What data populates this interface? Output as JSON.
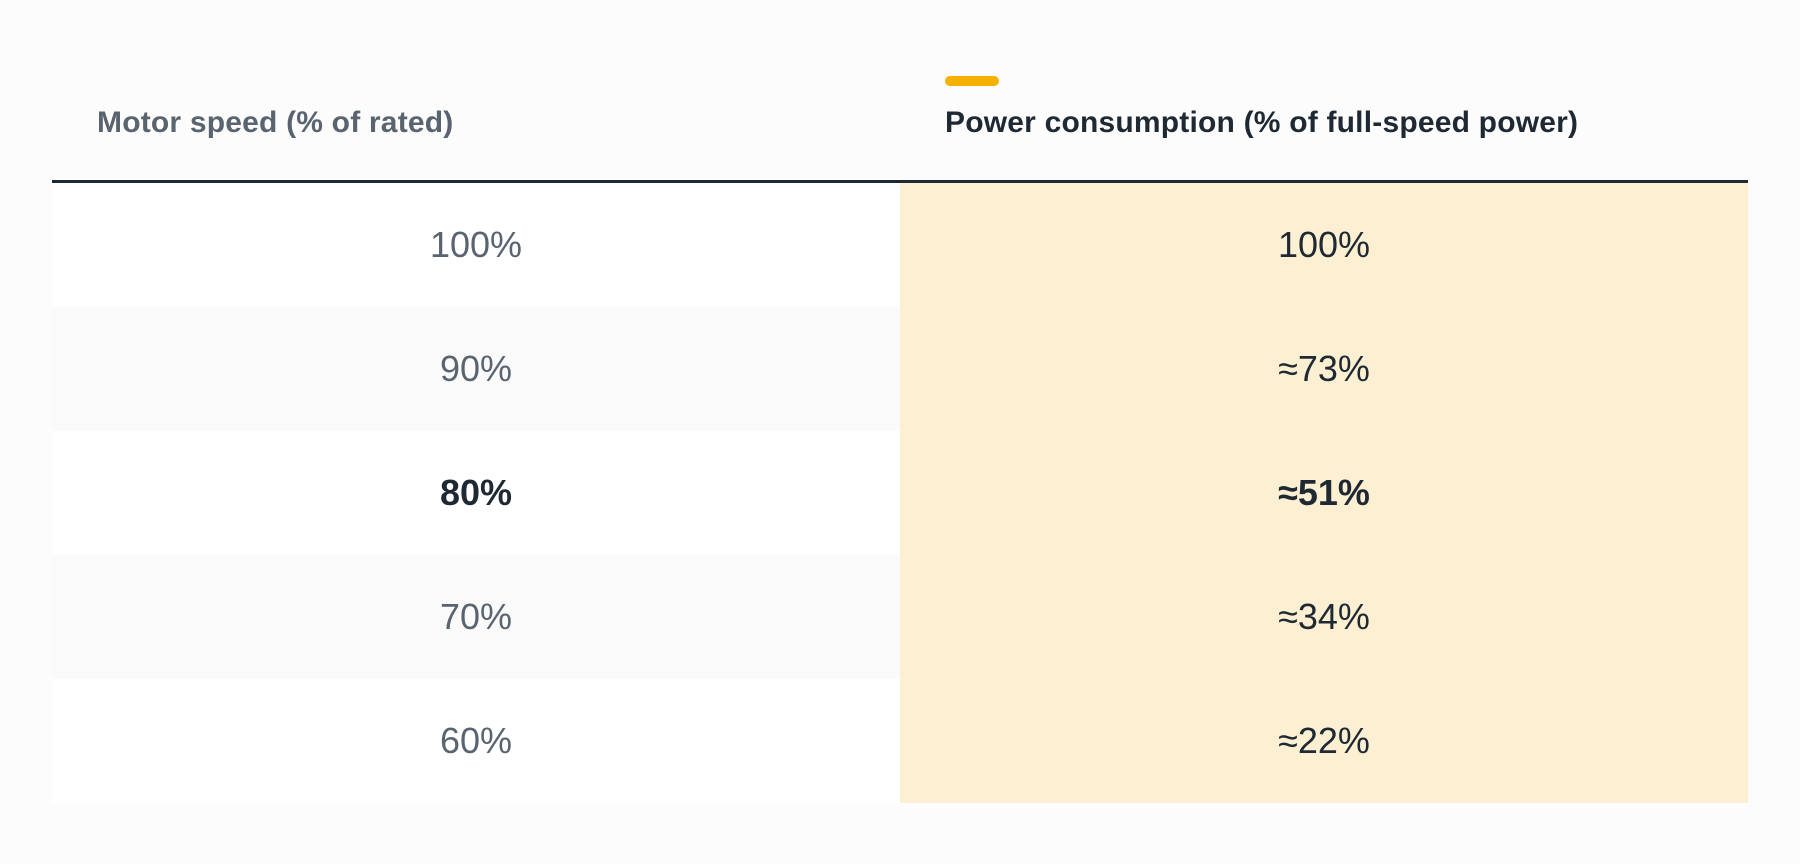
{
  "colors": {
    "accent": "#f5b000",
    "highlight_column": "#fdf0d2",
    "header_rule": "#1f2933"
  },
  "chart_data": {
    "type": "table",
    "columns": [
      "Motor speed (% of rated)",
      "Power consumption (% of full-speed power)"
    ],
    "highlighted_column": 1,
    "emphasized_row": 2,
    "rows": [
      [
        "100%",
        "100%"
      ],
      [
        "90%",
        "≈73%"
      ],
      [
        "80%",
        "≈51%"
      ],
      [
        "70%",
        "≈34%"
      ],
      [
        "60%",
        "≈22%"
      ]
    ]
  }
}
